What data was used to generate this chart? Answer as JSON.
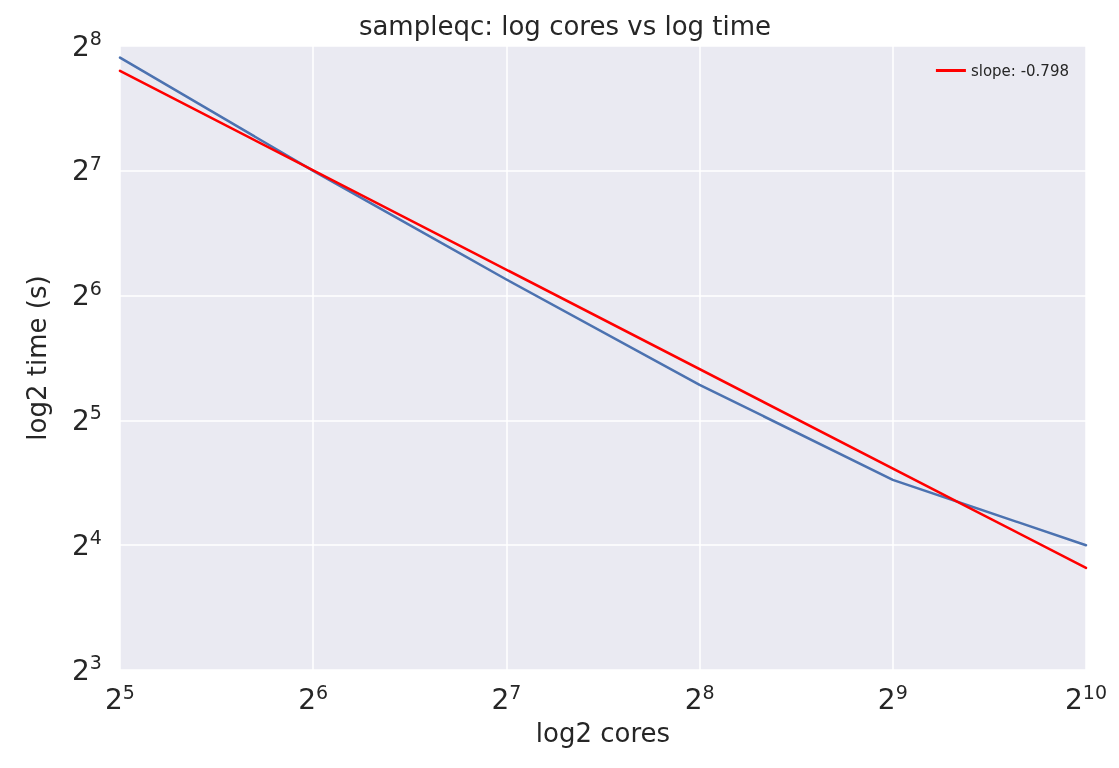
{
  "chart_data": {
    "type": "line",
    "title": "sampleqc: log cores vs log time",
    "xlabel": "log2 cores",
    "ylabel": "log2 time (s)",
    "x": [
      32,
      64,
      128,
      256,
      512,
      1024
    ],
    "series": [
      {
        "color": "#4c72b0",
        "values": [
          240,
          128,
          70,
          39,
          23,
          16
        ]
      },
      {
        "name": "slope: -0.798",
        "color": "#ff0000",
        "x": [
          32,
          1024
        ],
        "values": [
          223,
          14.1
        ]
      }
    ],
    "log": "xy",
    "xlim": [
      32,
      1024
    ],
    "ylim": [
      8,
      256
    ],
    "xticks": [
      {
        "value": 32,
        "label": "2$^{5}$"
      },
      {
        "value": 64,
        "label": "2$^{6}$"
      },
      {
        "value": 128,
        "label": "2$^{7}$"
      },
      {
        "value": 256,
        "label": "2$^{8}$"
      },
      {
        "value": 512,
        "label": "2$^{9}$"
      },
      {
        "value": 1024,
        "label": "2$^{10}$"
      }
    ],
    "yticks": [
      {
        "value": 8,
        "label": "2$^{3}$"
      },
      {
        "value": 16,
        "label": "2$^{4}$"
      },
      {
        "value": 32,
        "label": "2$^{5}$"
      },
      {
        "value": 64,
        "label": "2$^{6}$"
      },
      {
        "value": 128,
        "label": "2$^{7}$"
      },
      {
        "value": 256,
        "label": "2$^{8}$"
      }
    ],
    "grid": true,
    "legend": "top right",
    "marker": "none",
    "line_style": "solid"
  }
}
